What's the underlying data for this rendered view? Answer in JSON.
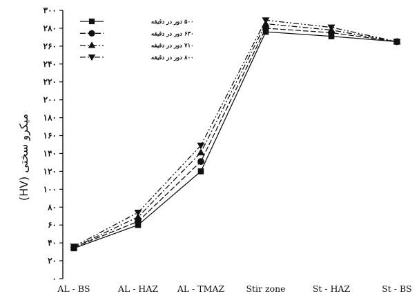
{
  "chart_data": {
    "type": "line",
    "title": "",
    "xlabel": "",
    "ylabel": "میکرو سختی  (HV)",
    "ylim": [
      0,
      300
    ],
    "yticks": [
      0,
      20,
      40,
      60,
      80,
      100,
      120,
      140,
      160,
      180,
      200,
      220,
      240,
      260,
      280,
      300
    ],
    "ytick_labels": [
      "۰",
      "۲۰",
      "۴۰",
      "۶۰",
      "۸۰",
      "۱۰۰",
      "۱۲۰",
      "۱۴۰",
      "۱۶۰",
      "۱۸۰",
      "۲۰۰",
      "۲۲۰",
      "۲۴۰",
      "۲۶۰",
      "۲۸۰",
      "۳۰۰"
    ],
    "categories": [
      "AL - BS",
      "AL - HAZ",
      "AL - TMAZ",
      "Stir zone",
      "St - HAZ",
      "St - BS"
    ],
    "legend_position": "top-left",
    "grid": false,
    "series": [
      {
        "name": "۵۰۰ دور در دقیقه",
        "marker": "square",
        "dash": "",
        "values": [
          34,
          60,
          120,
          276,
          271,
          265
        ]
      },
      {
        "name": "۶۳۰ دور در دقیقه",
        "marker": "circle",
        "dash": "8,3",
        "values": [
          35,
          64,
          131,
          280,
          275,
          265
        ]
      },
      {
        "name": "۷۱۰ دور در دقیقه",
        "marker": "triangle-up",
        "dash": "8,3,2,3",
        "values": [
          35,
          69,
          141,
          285,
          278,
          265
        ]
      },
      {
        "name": "۸۰۰ دور در دقیقه",
        "marker": "triangle-down",
        "dash": "8,3,2,3,2,3",
        "values": [
          36,
          74,
          149,
          289,
          281,
          265
        ]
      }
    ]
  }
}
